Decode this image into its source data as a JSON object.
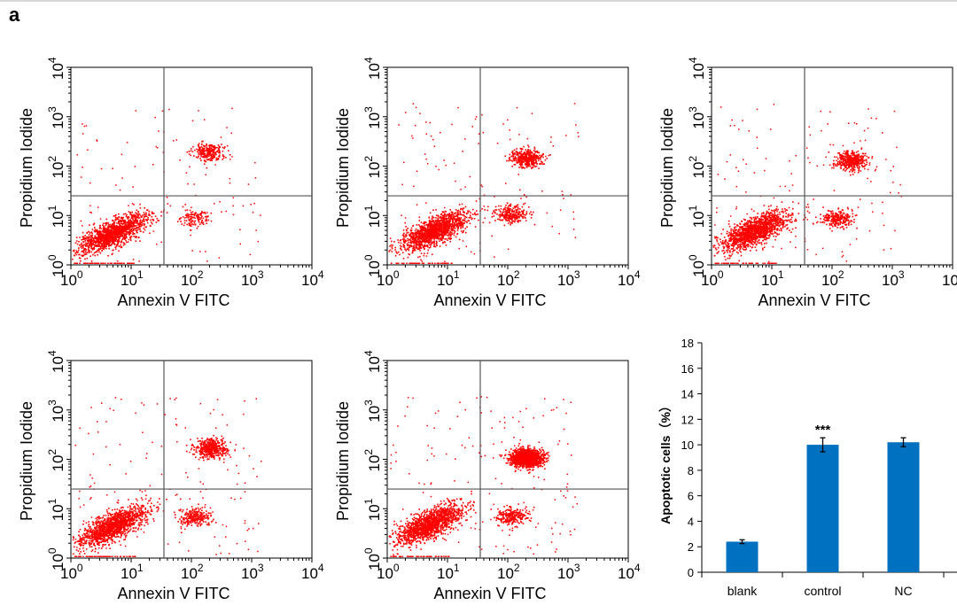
{
  "figure": {
    "panel_label": "a"
  },
  "flow_plots": {
    "xlabel": "Annexin V FITC",
    "ylabel": "Propidium Iodide",
    "ticks": [
      "0",
      "1",
      "2",
      "3",
      "4"
    ],
    "tick_base": "10",
    "dot_color": "#ff0000",
    "gate_color": "#555555"
  },
  "chart_data": [
    {
      "type": "scatter",
      "plot": 1,
      "xlabel": "Annexin V FITC",
      "ylabel": "Propidium Iodide",
      "xscale": "log",
      "yscale": "log",
      "xlim": [
        1,
        10000
      ],
      "ylim": [
        1,
        10000
      ],
      "gate_x": 35,
      "gate_y": 25,
      "populations": [
        {
          "quadrant": "lower-left",
          "center": [
            5,
            4.5
          ],
          "relative_density": "very high"
        },
        {
          "quadrant": "upper-right",
          "center": [
            190,
            200
          ],
          "relative_density": "medium"
        },
        {
          "quadrant": "lower-right",
          "center": [
            110,
            9
          ],
          "relative_density": "low"
        }
      ]
    },
    {
      "type": "scatter",
      "plot": 2,
      "xlabel": "Annexin V FITC",
      "ylabel": "Propidium Iodide",
      "xscale": "log",
      "yscale": "log",
      "xlim": [
        1,
        10000
      ],
      "ylim": [
        1,
        10000
      ],
      "gate_x": 35,
      "gate_y": 25,
      "populations": [
        {
          "quadrant": "lower-left",
          "center": [
            6,
            5
          ],
          "relative_density": "very high"
        },
        {
          "quadrant": "upper-right",
          "center": [
            200,
            150
          ],
          "relative_density": "high"
        },
        {
          "quadrant": "lower-right",
          "center": [
            110,
            11
          ],
          "relative_density": "medium"
        }
      ]
    },
    {
      "type": "scatter",
      "plot": 3,
      "xlabel": "Annexin V FITC",
      "ylabel": "Propidium Iodide",
      "xscale": "log",
      "yscale": "log",
      "xlim": [
        1,
        10000
      ],
      "ylim": [
        1,
        10000
      ],
      "gate_x": 35,
      "gate_y": 25,
      "populations": [
        {
          "quadrant": "lower-left",
          "center": [
            5,
            5
          ],
          "relative_density": "very high"
        },
        {
          "quadrant": "upper-right",
          "center": [
            200,
            130
          ],
          "relative_density": "high"
        },
        {
          "quadrant": "lower-right",
          "center": [
            120,
            9
          ],
          "relative_density": "medium"
        }
      ]
    },
    {
      "type": "scatter",
      "plot": 4,
      "xlabel": "Annexin V FITC",
      "ylabel": "Propidium Iodide",
      "xscale": "log",
      "yscale": "log",
      "xlim": [
        1,
        10000
      ],
      "ylim": [
        1,
        10000
      ],
      "gate_x": 35,
      "gate_y": 25,
      "populations": [
        {
          "quadrant": "lower-left",
          "center": [
            5,
            4.5
          ],
          "relative_density": "very high"
        },
        {
          "quadrant": "upper-right",
          "center": [
            200,
            170
          ],
          "relative_density": "high"
        },
        {
          "quadrant": "lower-right",
          "center": [
            110,
            7
          ],
          "relative_density": "medium"
        }
      ]
    },
    {
      "type": "scatter",
      "plot": 5,
      "xlabel": "Annexin V FITC",
      "ylabel": "Propidium Iodide",
      "xscale": "log",
      "yscale": "log",
      "xlim": [
        1,
        10000
      ],
      "ylim": [
        1,
        10000
      ],
      "gate_x": 35,
      "gate_y": 25,
      "populations": [
        {
          "quadrant": "lower-left",
          "center": [
            5,
            5
          ],
          "relative_density": "very high"
        },
        {
          "quadrant": "upper-right",
          "center": [
            200,
            110
          ],
          "relative_density": "very high"
        },
        {
          "quadrant": "lower-right",
          "center": [
            110,
            7
          ],
          "relative_density": "medium"
        }
      ]
    },
    {
      "type": "bar",
      "title": "",
      "xlabel": "",
      "ylabel": "Apoptotic cells（%）",
      "categories": [
        "blank",
        "control",
        "NC"
      ],
      "values": [
        2.4,
        10.0,
        10.2
      ],
      "errors": [
        0.15,
        0.55,
        0.35
      ],
      "annotations": [
        "",
        "***",
        ""
      ],
      "ylim": [
        0,
        18
      ],
      "yticks": [
        "0",
        "2",
        "4",
        "6",
        "8",
        "10",
        "12",
        "14",
        "16",
        "18"
      ],
      "color": "#0070c0",
      "grid": false
    }
  ]
}
